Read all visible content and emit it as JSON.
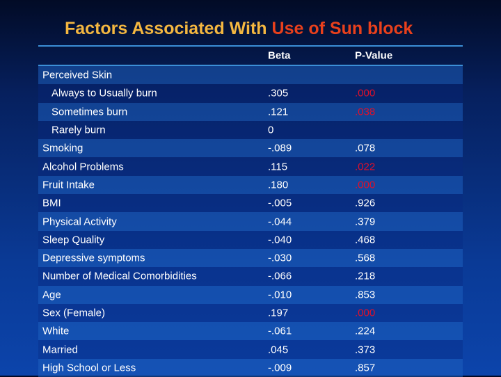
{
  "title": {
    "part1": "Factors Associated With ",
    "part2": "Use of Sun block"
  },
  "colors": {
    "title_main": "#f4b740",
    "title_accent": "#e8401c",
    "significant": "#e0102a"
  },
  "table": {
    "headers": [
      "",
      "Beta",
      "P-Value"
    ],
    "rows": [
      {
        "label": "Perceived Skin",
        "beta": "",
        "p": "",
        "indent": false,
        "sig": false
      },
      {
        "label": "Always to Usually burn",
        "beta": ".305",
        "p": ".000",
        "indent": true,
        "sig": true
      },
      {
        "label": "Sometimes burn",
        "beta": ".121",
        "p": ".038",
        "indent": true,
        "sig": true
      },
      {
        "label": "Rarely burn",
        "beta": "0",
        "p": "",
        "indent": true,
        "sig": false
      },
      {
        "label": "Smoking",
        "beta": "-.089",
        "p": ".078",
        "indent": false,
        "sig": false
      },
      {
        "label": "Alcohol Problems",
        "beta": ".115",
        "p": ".022",
        "indent": false,
        "sig": true
      },
      {
        "label": "Fruit Intake",
        "beta": ".180",
        "p": ".000",
        "indent": false,
        "sig": true
      },
      {
        "label": "BMI",
        "beta": "-.005",
        "p": ".926",
        "indent": false,
        "sig": false
      },
      {
        "label": "Physical Activity",
        "beta": "-.044",
        "p": ".379",
        "indent": false,
        "sig": false
      },
      {
        "label": "Sleep Quality",
        "beta": "-.040",
        "p": ".468",
        "indent": false,
        "sig": false
      },
      {
        "label": "Depressive symptoms",
        "beta": "-.030",
        "p": ".568",
        "indent": false,
        "sig": false
      },
      {
        "label": "Number of Medical Comorbidities",
        "beta": "-.066",
        "p": ".218",
        "indent": false,
        "sig": false
      },
      {
        "label": "Age",
        "beta": "-.010",
        "p": ".853",
        "indent": false,
        "sig": false
      },
      {
        "label": "Sex (Female)",
        "beta": ".197",
        "p": ".000",
        "indent": false,
        "sig": true
      },
      {
        "label": "White",
        "beta": "-.061",
        "p": ".224",
        "indent": false,
        "sig": false
      },
      {
        "label": "Married",
        "beta": ".045",
        "p": ".373",
        "indent": false,
        "sig": false
      },
      {
        "label": "High School or Less",
        "beta": "-.009",
        "p": ".857",
        "indent": false,
        "sig": false
      }
    ]
  }
}
